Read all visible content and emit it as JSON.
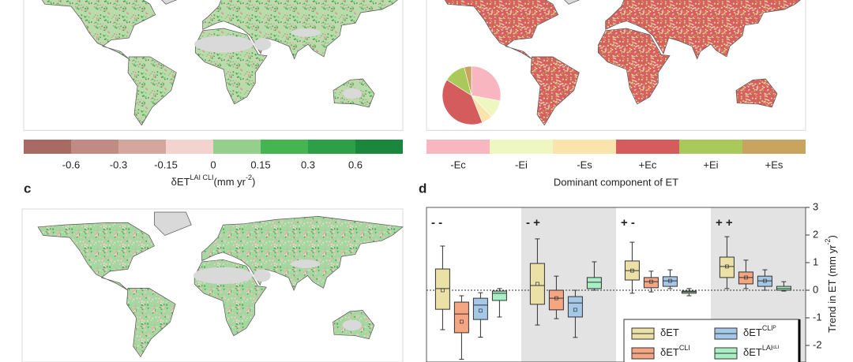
{
  "chart_data": [
    {
      "type": "map",
      "colorbar": {
        "colors": [
          "#a86b63",
          "#bf8b82",
          "#d4a69e",
          "#f3d3cd",
          "#94d08c",
          "#45b552",
          "#2c9f47",
          "#1b873c"
        ],
        "ticks": [
          -0.6,
          -0.3,
          -0.15,
          0,
          0.15,
          0.3,
          0.6
        ]
      },
      "label": {
        "main": "δET",
        "sup": "LAI CLI",
        "unit": "(mm yr",
        "unit_sup": "-2",
        "end": ")"
      }
    },
    {
      "type": "map",
      "categories": [
        "-Ec",
        "-Ei",
        "-Es",
        "+Ec",
        "+Ei",
        "+Es"
      ],
      "colors": [
        "#f7b6c0",
        "#eef7c0",
        "#f9e4ac",
        "#d45c5c",
        "#a9c95a",
        "#c9a45e"
      ],
      "pie_values": [
        28,
        10,
        6,
        40,
        12,
        4
      ],
      "label": "Dominant component of ET"
    },
    {
      "type": "map",
      "panel": "c"
    },
    {
      "type": "box",
      "panel": "d",
      "groups": [
        "- -",
        "- +",
        "+ -",
        "+ +"
      ],
      "ylim": [
        -2.6,
        3
      ],
      "yticks": [
        3,
        2,
        1,
        0,
        -1,
        -2
      ],
      "y_label": {
        "main": "Trend in ET (mm yr",
        "sup": "-2",
        "end": ")"
      },
      "series": [
        {
          "name": "δET",
          "sup": "",
          "color": "#ebe0a6",
          "boxes": [
            {
              "min": -1.43,
              "q1": -0.69,
              "median": 0.06,
              "q3": 0.77,
              "max": 1.6,
              "mean": 0.0
            },
            {
              "min": -1.26,
              "q1": -0.51,
              "median": 0.17,
              "q3": 0.97,
              "max": 1.86,
              "mean": 0.23
            },
            {
              "min": -0.11,
              "q1": 0.37,
              "median": 0.71,
              "q3": 1.06,
              "max": 1.74,
              "mean": 0.71
            },
            {
              "min": 0.06,
              "q1": 0.46,
              "median": 0.86,
              "q3": 1.2,
              "max": 1.94,
              "mean": 0.86
            }
          ]
        },
        {
          "name": "δET",
          "sup": "CLI",
          "color": "#f4a582",
          "boxes": [
            {
              "min": -2.5,
              "q1": -1.54,
              "median": -0.86,
              "q3": -0.43,
              "max": -0.2,
              "mean": -1.14
            },
            {
              "min": -1.03,
              "q1": -0.71,
              "median": -0.29,
              "q3": 0.0,
              "max": 0.51,
              "mean": -0.29
            },
            {
              "min": -0.06,
              "q1": 0.09,
              "median": 0.31,
              "q3": 0.46,
              "max": 0.69,
              "mean": 0.31
            },
            {
              "min": 0.06,
              "q1": 0.23,
              "median": 0.46,
              "q3": 0.66,
              "max": 1.09,
              "mean": 0.46
            }
          ]
        },
        {
          "name": "δET",
          "sup": "CLIᴾ",
          "color": "#a6c8e8",
          "boxes": [
            {
              "min": -1.7,
              "q1": -1.06,
              "median": -0.54,
              "q3": -0.29,
              "max": -0.09,
              "mean": -0.74
            },
            {
              "min": -1.71,
              "q1": -0.97,
              "median": -0.46,
              "q3": -0.23,
              "max": 0.0,
              "mean": -0.71
            },
            {
              "min": 0.06,
              "q1": 0.14,
              "median": 0.34,
              "q3": 0.49,
              "max": 0.74,
              "mean": 0.34
            },
            {
              "min": 0.0,
              "q1": 0.14,
              "median": 0.34,
              "q3": 0.51,
              "max": 0.74,
              "mean": 0.34
            }
          ]
        },
        {
          "name": "δET",
          "sup": "LAIᶜᴸᴵ",
          "color": "#a8efc4",
          "boxes": [
            {
              "min": -0.97,
              "q1": -0.37,
              "median": -0.11,
              "q3": -0.03,
              "max": 0.06
            },
            {
              "min": 0.0,
              "q1": 0.06,
              "median": 0.29,
              "q3": 0.46,
              "max": 1.03
            },
            {
              "min": -0.2,
              "q1": -0.11,
              "median": -0.06,
              "q3": -0.03,
              "max": 0.06
            },
            {
              "min": -0.03,
              "q1": 0.0,
              "median": 0.06,
              "q3": 0.14,
              "max": 0.31
            }
          ]
        }
      ]
    }
  ]
}
